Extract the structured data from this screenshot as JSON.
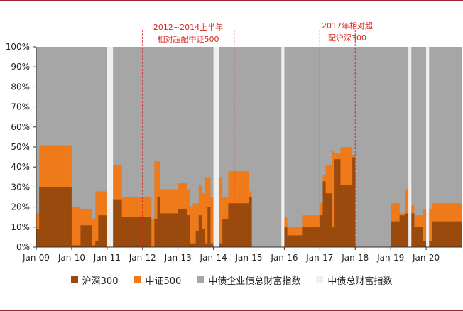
{
  "chart_data": {
    "type": "area",
    "stacked": true,
    "normalized": true,
    "x_range": [
      "2009-01",
      "2021-01"
    ],
    "ylim": [
      0,
      100
    ],
    "y_ticks": [
      0,
      10,
      20,
      30,
      40,
      50,
      60,
      70,
      80,
      90,
      100
    ],
    "y_tick_labels": [
      "0%",
      "10%",
      "20%",
      "30%",
      "40%",
      "50%",
      "60%",
      "70%",
      "80%",
      "90%",
      "100%"
    ],
    "x_tick_labels": [
      "Jan-09",
      "Jan-10",
      "Jan-11",
      "Jan-12",
      "Jan-13",
      "Jan-14",
      "Jan-15",
      "Jan-16",
      "Jan-17",
      "Jan-18",
      "Jan-19",
      "Jan-20"
    ],
    "x_tick_values": [
      2009,
      2010,
      2011,
      2012,
      2013,
      2014,
      2015,
      2016,
      2017,
      2018,
      2019,
      2020
    ],
    "series": [
      {
        "name": "沪深300",
        "color": "#9a4a0c"
      },
      {
        "name": "中证500",
        "color": "#ee7a1a"
      },
      {
        "name": "中债企业债总财富指数",
        "color": "#a6a6a6"
      },
      {
        "name": "中债总财富指数",
        "color": "#f0f0f0"
      }
    ],
    "monthly": [
      {
        "t": "2009-01",
        "hs300": 9,
        "zz500": 8,
        "corp": 83,
        "total": 0
      },
      {
        "t": "2009-02",
        "hs300": 30,
        "zz500": 21,
        "corp": 49,
        "total": 0
      },
      {
        "t": "2009-03",
        "hs300": 30,
        "zz500": 21,
        "corp": 49,
        "total": 0
      },
      {
        "t": "2009-04",
        "hs300": 30,
        "zz500": 21,
        "corp": 49,
        "total": 0
      },
      {
        "t": "2009-05",
        "hs300": 30,
        "zz500": 21,
        "corp": 49,
        "total": 0
      },
      {
        "t": "2009-06",
        "hs300": 30,
        "zz500": 21,
        "corp": 49,
        "total": 0
      },
      {
        "t": "2009-07",
        "hs300": 30,
        "zz500": 21,
        "corp": 49,
        "total": 0
      },
      {
        "t": "2009-08",
        "hs300": 30,
        "zz500": 21,
        "corp": 49,
        "total": 0
      },
      {
        "t": "2009-09",
        "hs300": 30,
        "zz500": 21,
        "corp": 49,
        "total": 0
      },
      {
        "t": "2009-10",
        "hs300": 30,
        "zz500": 21,
        "corp": 49,
        "total": 0
      },
      {
        "t": "2009-11",
        "hs300": 30,
        "zz500": 21,
        "corp": 49,
        "total": 0
      },
      {
        "t": "2009-12",
        "hs300": 30,
        "zz500": 21,
        "corp": 49,
        "total": 0
      },
      {
        "t": "2010-01",
        "hs300": 1,
        "zz500": 19,
        "corp": 80,
        "total": 0
      },
      {
        "t": "2010-02",
        "hs300": 1,
        "zz500": 19,
        "corp": 80,
        "total": 0
      },
      {
        "t": "2010-03",
        "hs300": 1,
        "zz500": 19,
        "corp": 80,
        "total": 0
      },
      {
        "t": "2010-04",
        "hs300": 11,
        "zz500": 8,
        "corp": 81,
        "total": 0
      },
      {
        "t": "2010-05",
        "hs300": 11,
        "zz500": 8,
        "corp": 81,
        "total": 0
      },
      {
        "t": "2010-06",
        "hs300": 11,
        "zz500": 8,
        "corp": 81,
        "total": 0
      },
      {
        "t": "2010-07",
        "hs300": 11,
        "zz500": 8,
        "corp": 81,
        "total": 0
      },
      {
        "t": "2010-08",
        "hs300": 1,
        "zz500": 13,
        "corp": 86,
        "total": 0
      },
      {
        "t": "2010-09",
        "hs300": 3,
        "zz500": 25,
        "corp": 72,
        "total": 0
      },
      {
        "t": "2010-10",
        "hs300": 16,
        "zz500": 12,
        "corp": 72,
        "total": 0
      },
      {
        "t": "2010-11",
        "hs300": 16,
        "zz500": 12,
        "corp": 72,
        "total": 0
      },
      {
        "t": "2010-12",
        "hs300": 16,
        "zz500": 12,
        "corp": 72,
        "total": 0
      },
      {
        "t": "2011-01",
        "hs300": 0,
        "zz500": 0,
        "corp": 0,
        "total": 100
      },
      {
        "t": "2011-02",
        "hs300": 0,
        "zz500": 0,
        "corp": 0,
        "total": 100
      },
      {
        "t": "2011-03",
        "hs300": 24,
        "zz500": 17,
        "corp": 59,
        "total": 0
      },
      {
        "t": "2011-04",
        "hs300": 24,
        "zz500": 17,
        "corp": 59,
        "total": 0
      },
      {
        "t": "2011-05",
        "hs300": 24,
        "zz500": 17,
        "corp": 59,
        "total": 0
      },
      {
        "t": "2011-06",
        "hs300": 15,
        "zz500": 10,
        "corp": 75,
        "total": 0
      },
      {
        "t": "2011-07",
        "hs300": 15,
        "zz500": 10,
        "corp": 75,
        "total": 0
      },
      {
        "t": "2011-08",
        "hs300": 15,
        "zz500": 10,
        "corp": 75,
        "total": 0
      },
      {
        "t": "2011-09",
        "hs300": 15,
        "zz500": 10,
        "corp": 75,
        "total": 0
      },
      {
        "t": "2011-10",
        "hs300": 15,
        "zz500": 10,
        "corp": 75,
        "total": 0
      },
      {
        "t": "2011-11",
        "hs300": 15,
        "zz500": 10,
        "corp": 75,
        "total": 0
      },
      {
        "t": "2011-12",
        "hs300": 15,
        "zz500": 10,
        "corp": 75,
        "total": 0
      },
      {
        "t": "2012-01",
        "hs300": 15,
        "zz500": 10,
        "corp": 75,
        "total": 0
      },
      {
        "t": "2012-02",
        "hs300": 15,
        "zz500": 10,
        "corp": 75,
        "total": 0
      },
      {
        "t": "2012-03",
        "hs300": 15,
        "zz500": 10,
        "corp": 75,
        "total": 0
      },
      {
        "t": "2012-04",
        "hs300": 0,
        "zz500": 14,
        "corp": 86,
        "total": 0
      },
      {
        "t": "2012-05",
        "hs300": 14,
        "zz500": 29,
        "corp": 57,
        "total": 0
      },
      {
        "t": "2012-06",
        "hs300": 25,
        "zz500": 18,
        "corp": 57,
        "total": 0
      },
      {
        "t": "2012-07",
        "hs300": 17,
        "zz500": 12,
        "corp": 71,
        "total": 0
      },
      {
        "t": "2012-08",
        "hs300": 17,
        "zz500": 12,
        "corp": 71,
        "total": 0
      },
      {
        "t": "2012-09",
        "hs300": 17,
        "zz500": 12,
        "corp": 71,
        "total": 0
      },
      {
        "t": "2012-10",
        "hs300": 17,
        "zz500": 12,
        "corp": 71,
        "total": 0
      },
      {
        "t": "2012-11",
        "hs300": 17,
        "zz500": 12,
        "corp": 71,
        "total": 0
      },
      {
        "t": "2012-12",
        "hs300": 17,
        "zz500": 12,
        "corp": 71,
        "total": 0
      },
      {
        "t": "2013-01",
        "hs300": 19,
        "zz500": 13,
        "corp": 68,
        "total": 0
      },
      {
        "t": "2013-02",
        "hs300": 19,
        "zz500": 13,
        "corp": 68,
        "total": 0
      },
      {
        "t": "2013-03",
        "hs300": 19,
        "zz500": 13,
        "corp": 68,
        "total": 0
      },
      {
        "t": "2013-04",
        "hs300": 16,
        "zz500": 13,
        "corp": 71,
        "total": 0
      },
      {
        "t": "2013-05",
        "hs300": 2,
        "zz500": 18,
        "corp": 80,
        "total": 0
      },
      {
        "t": "2013-06",
        "hs300": 2,
        "zz500": 20,
        "corp": 78,
        "total": 0
      },
      {
        "t": "2013-07",
        "hs300": 8,
        "zz500": 14,
        "corp": 78,
        "total": 0
      },
      {
        "t": "2013-08",
        "hs300": 16,
        "zz500": 15,
        "corp": 69,
        "total": 0
      },
      {
        "t": "2013-09",
        "hs300": 9,
        "zz500": 18,
        "corp": 73,
        "total": 0
      },
      {
        "t": "2013-10",
        "hs300": 2,
        "zz500": 33,
        "corp": 65,
        "total": 0
      },
      {
        "t": "2013-11",
        "hs300": 20,
        "zz500": 15,
        "corp": 65,
        "total": 0
      },
      {
        "t": "2013-12",
        "hs300": 2,
        "zz500": 23,
        "corp": 75,
        "total": 0
      },
      {
        "t": "2014-01",
        "hs300": 0,
        "zz500": 0,
        "corp": 0,
        "total": 100
      },
      {
        "t": "2014-02",
        "hs300": 0,
        "zz500": 0,
        "corp": 0,
        "total": 100
      },
      {
        "t": "2014-03",
        "hs300": 2,
        "zz500": 33,
        "corp": 65,
        "total": 0
      },
      {
        "t": "2014-04",
        "hs300": 14,
        "zz500": 11,
        "corp": 75,
        "total": 0
      },
      {
        "t": "2014-05",
        "hs300": 14,
        "zz500": 11,
        "corp": 75,
        "total": 0
      },
      {
        "t": "2014-06",
        "hs300": 22,
        "zz500": 16,
        "corp": 62,
        "total": 0
      },
      {
        "t": "2014-07",
        "hs300": 22,
        "zz500": 16,
        "corp": 62,
        "total": 0
      },
      {
        "t": "2014-08",
        "hs300": 22,
        "zz500": 16,
        "corp": 62,
        "total": 0
      },
      {
        "t": "2014-09",
        "hs300": 22,
        "zz500": 16,
        "corp": 62,
        "total": 0
      },
      {
        "t": "2014-10",
        "hs300": 22,
        "zz500": 16,
        "corp": 62,
        "total": 0
      },
      {
        "t": "2014-11",
        "hs300": 22,
        "zz500": 16,
        "corp": 62,
        "total": 0
      },
      {
        "t": "2014-12",
        "hs300": 22,
        "zz500": 16,
        "corp": 62,
        "total": 0
      },
      {
        "t": "2015-01",
        "hs300": 25,
        "zz500": 3,
        "corp": 72,
        "total": 0
      },
      {
        "t": "2015-02",
        "hs300": 0,
        "zz500": 0,
        "corp": 100,
        "total": 0
      },
      {
        "t": "2015-03",
        "hs300": 0,
        "zz500": 0,
        "corp": 100,
        "total": 0
      },
      {
        "t": "2015-04",
        "hs300": 0,
        "zz500": 0,
        "corp": 100,
        "total": 0
      },
      {
        "t": "2015-05",
        "hs300": 0,
        "zz500": 0,
        "corp": 100,
        "total": 0
      },
      {
        "t": "2015-06",
        "hs300": 0,
        "zz500": 0,
        "corp": 100,
        "total": 0
      },
      {
        "t": "2015-07",
        "hs300": 0,
        "zz500": 0,
        "corp": 100,
        "total": 0
      },
      {
        "t": "2015-08",
        "hs300": 0,
        "zz500": 0,
        "corp": 100,
        "total": 0
      },
      {
        "t": "2015-09",
        "hs300": 0,
        "zz500": 0,
        "corp": 100,
        "total": 0
      },
      {
        "t": "2015-10",
        "hs300": 0,
        "zz500": 0,
        "corp": 100,
        "total": 0
      },
      {
        "t": "2015-11",
        "hs300": 0,
        "zz500": 0,
        "corp": 100,
        "total": 0
      },
      {
        "t": "2015-12",
        "hs300": 0,
        "zz500": 0,
        "corp": 0,
        "total": 100
      },
      {
        "t": "2016-01",
        "hs300": 10,
        "zz500": 5,
        "corp": 85,
        "total": 0
      },
      {
        "t": "2016-02",
        "hs300": 6,
        "zz500": 4,
        "corp": 90,
        "total": 0
      },
      {
        "t": "2016-03",
        "hs300": 6,
        "zz500": 4,
        "corp": 90,
        "total": 0
      },
      {
        "t": "2016-04",
        "hs300": 6,
        "zz500": 4,
        "corp": 90,
        "total": 0
      },
      {
        "t": "2016-05",
        "hs300": 6,
        "zz500": 4,
        "corp": 90,
        "total": 0
      },
      {
        "t": "2016-06",
        "hs300": 6,
        "zz500": 4,
        "corp": 90,
        "total": 0
      },
      {
        "t": "2016-07",
        "hs300": 10,
        "zz500": 6,
        "corp": 84,
        "total": 0
      },
      {
        "t": "2016-08",
        "hs300": 10,
        "zz500": 6,
        "corp": 84,
        "total": 0
      },
      {
        "t": "2016-09",
        "hs300": 10,
        "zz500": 6,
        "corp": 84,
        "total": 0
      },
      {
        "t": "2016-10",
        "hs300": 10,
        "zz500": 6,
        "corp": 84,
        "total": 0
      },
      {
        "t": "2016-11",
        "hs300": 10,
        "zz500": 6,
        "corp": 84,
        "total": 0
      },
      {
        "t": "2016-12",
        "hs300": 10,
        "zz500": 6,
        "corp": 84,
        "total": 0
      },
      {
        "t": "2017-01",
        "hs300": 16,
        "zz500": 6,
        "corp": 78,
        "total": 0
      },
      {
        "t": "2017-02",
        "hs300": 33,
        "zz500": 3,
        "corp": 64,
        "total": 0
      },
      {
        "t": "2017-03",
        "hs300": 27,
        "zz500": 14,
        "corp": 59,
        "total": 0
      },
      {
        "t": "2017-04",
        "hs300": 27,
        "zz500": 14,
        "corp": 59,
        "total": 0
      },
      {
        "t": "2017-05",
        "hs300": 10,
        "zz500": 38,
        "corp": 52,
        "total": 0
      },
      {
        "t": "2017-06",
        "hs300": 44,
        "zz500": 3,
        "corp": 53,
        "total": 0
      },
      {
        "t": "2017-07",
        "hs300": 44,
        "zz500": 3,
        "corp": 53,
        "total": 0
      },
      {
        "t": "2017-08",
        "hs300": 31,
        "zz500": 19,
        "corp": 50,
        "total": 0
      },
      {
        "t": "2017-09",
        "hs300": 31,
        "zz500": 19,
        "corp": 50,
        "total": 0
      },
      {
        "t": "2017-10",
        "hs300": 31,
        "zz500": 19,
        "corp": 50,
        "total": 0
      },
      {
        "t": "2017-11",
        "hs300": 31,
        "zz500": 19,
        "corp": 50,
        "total": 0
      },
      {
        "t": "2017-12",
        "hs300": 45,
        "zz500": 1,
        "corp": 54,
        "total": 0
      },
      {
        "t": "2018-01",
        "hs300": 0,
        "zz500": 0,
        "corp": 100,
        "total": 0
      },
      {
        "t": "2018-02",
        "hs300": 0,
        "zz500": 0,
        "corp": 100,
        "total": 0
      },
      {
        "t": "2018-03",
        "hs300": 0,
        "zz500": 0,
        "corp": 100,
        "total": 0
      },
      {
        "t": "2018-04",
        "hs300": 0,
        "zz500": 0,
        "corp": 100,
        "total": 0
      },
      {
        "t": "2018-05",
        "hs300": 0,
        "zz500": 0,
        "corp": 100,
        "total": 0
      },
      {
        "t": "2018-06",
        "hs300": 0,
        "zz500": 0,
        "corp": 100,
        "total": 0
      },
      {
        "t": "2018-07",
        "hs300": 0,
        "zz500": 0,
        "corp": 100,
        "total": 0
      },
      {
        "t": "2018-08",
        "hs300": 0,
        "zz500": 0,
        "corp": 100,
        "total": 0
      },
      {
        "t": "2018-09",
        "hs300": 0,
        "zz500": 0,
        "corp": 100,
        "total": 0
      },
      {
        "t": "2018-10",
        "hs300": 0,
        "zz500": 0,
        "corp": 100,
        "total": 0
      },
      {
        "t": "2018-11",
        "hs300": 0,
        "zz500": 0,
        "corp": 100,
        "total": 0
      },
      {
        "t": "2018-12",
        "hs300": 0,
        "zz500": 0,
        "corp": 100,
        "total": 0
      },
      {
        "t": "2019-01",
        "hs300": 13,
        "zz500": 9,
        "corp": 78,
        "total": 0
      },
      {
        "t": "2019-02",
        "hs300": 13,
        "zz500": 9,
        "corp": 78,
        "total": 0
      },
      {
        "t": "2019-03",
        "hs300": 13,
        "zz500": 9,
        "corp": 78,
        "total": 0
      },
      {
        "t": "2019-04",
        "hs300": 16,
        "zz500": 1,
        "corp": 83,
        "total": 0
      },
      {
        "t": "2019-05",
        "hs300": 16,
        "zz500": 1,
        "corp": 83,
        "total": 0
      },
      {
        "t": "2019-06",
        "hs300": 17,
        "zz500": 12,
        "corp": 71,
        "total": 0
      },
      {
        "t": "2019-07",
        "hs300": 0,
        "zz500": 0,
        "corp": 0,
        "total": 100
      },
      {
        "t": "2019-08",
        "hs300": 17,
        "zz500": 4,
        "corp": 79,
        "total": 0
      },
      {
        "t": "2019-09",
        "hs300": 10,
        "zz500": 6,
        "corp": 84,
        "total": 0
      },
      {
        "t": "2019-10",
        "hs300": 10,
        "zz500": 6,
        "corp": 84,
        "total": 0
      },
      {
        "t": "2019-11",
        "hs300": 10,
        "zz500": 6,
        "corp": 84,
        "total": 0
      },
      {
        "t": "2019-12",
        "hs300": 3,
        "zz500": 16,
        "corp": 81,
        "total": 0
      },
      {
        "t": "2020-01",
        "hs300": 0,
        "zz500": 0,
        "corp": 0,
        "total": 100
      },
      {
        "t": "2020-02",
        "hs300": 3,
        "zz500": 16,
        "corp": 81,
        "total": 0
      },
      {
        "t": "2020-03",
        "hs300": 13,
        "zz500": 9,
        "corp": 78,
        "total": 0
      },
      {
        "t": "2020-04",
        "hs300": 13,
        "zz500": 9,
        "corp": 78,
        "total": 0
      },
      {
        "t": "2020-05",
        "hs300": 13,
        "zz500": 9,
        "corp": 78,
        "total": 0
      },
      {
        "t": "2020-06",
        "hs300": 13,
        "zz500": 9,
        "corp": 78,
        "total": 0
      },
      {
        "t": "2020-07",
        "hs300": 13,
        "zz500": 9,
        "corp": 78,
        "total": 0
      },
      {
        "t": "2020-08",
        "hs300": 13,
        "zz500": 9,
        "corp": 78,
        "total": 0
      }
    ],
    "vlines": [
      {
        "x": "2012-01",
        "color": "#d9261c"
      },
      {
        "x": "2014-08",
        "color": "#d9261c"
      },
      {
        "x": "2017-01",
        "color": "#d9261c"
      },
      {
        "x": "2018-01",
        "color": "#d9261c"
      }
    ],
    "annotations": [
      {
        "id": "ann1",
        "lines": [
          "2012~2014上半年",
          "相对超配中证500"
        ],
        "color": "#d9261c"
      },
      {
        "id": "ann2",
        "lines": [
          "2017年相对超",
          "配沪深300"
        ],
        "color": "#d9261c"
      }
    ],
    "grid": false,
    "legend_position": "bottom"
  }
}
